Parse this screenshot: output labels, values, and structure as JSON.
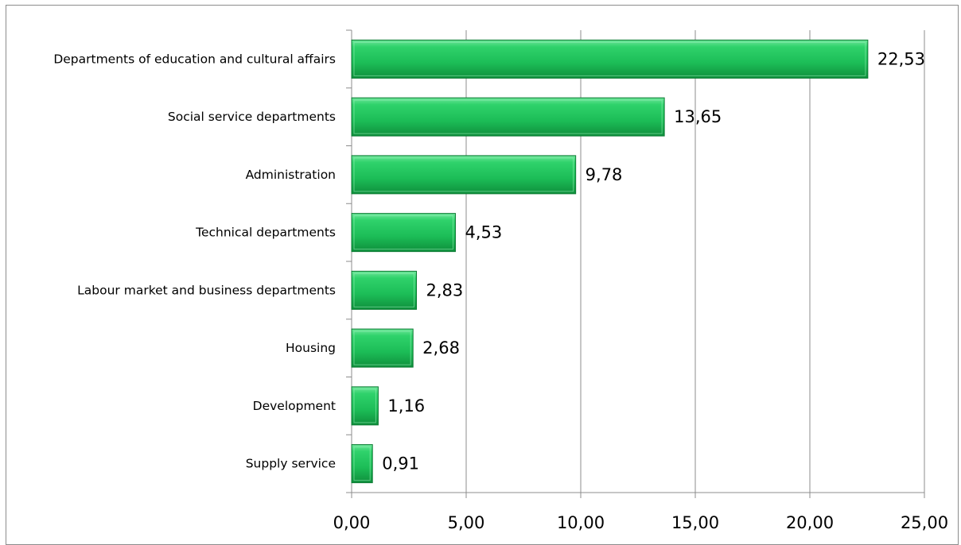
{
  "chart_data": {
    "type": "bar",
    "orientation": "horizontal",
    "categories": [
      "Departments of education and cultural affairs",
      "Social service departments",
      "Administration",
      "Technical departments",
      "Labour market and business departments",
      "Housing",
      "Development",
      "Supply service"
    ],
    "values": [
      22.53,
      13.65,
      9.78,
      4.53,
      2.83,
      2.68,
      1.16,
      0.91
    ],
    "value_labels": [
      "22,53",
      "13,65",
      "9,78",
      "4,53",
      "2,83",
      "2,68",
      "1,16",
      "0,91"
    ],
    "x_ticks": [
      0,
      5,
      10,
      15,
      20,
      25
    ],
    "x_tick_labels": [
      "0,00",
      "5,00",
      "10,00",
      "15,00",
      "20,00",
      "25,00"
    ],
    "xlim": [
      0,
      25
    ],
    "grid": "vertical",
    "legend": "none",
    "title": "",
    "xlabel": "",
    "ylabel": "",
    "colors": {
      "bar": "#1fbf5a",
      "bar_light": "#6ee69a",
      "bar_dark": "#0f8f3c",
      "bar_edge": "#0b7a32",
      "grid": "#8c8c8c",
      "axis": "#8c8c8c"
    }
  }
}
